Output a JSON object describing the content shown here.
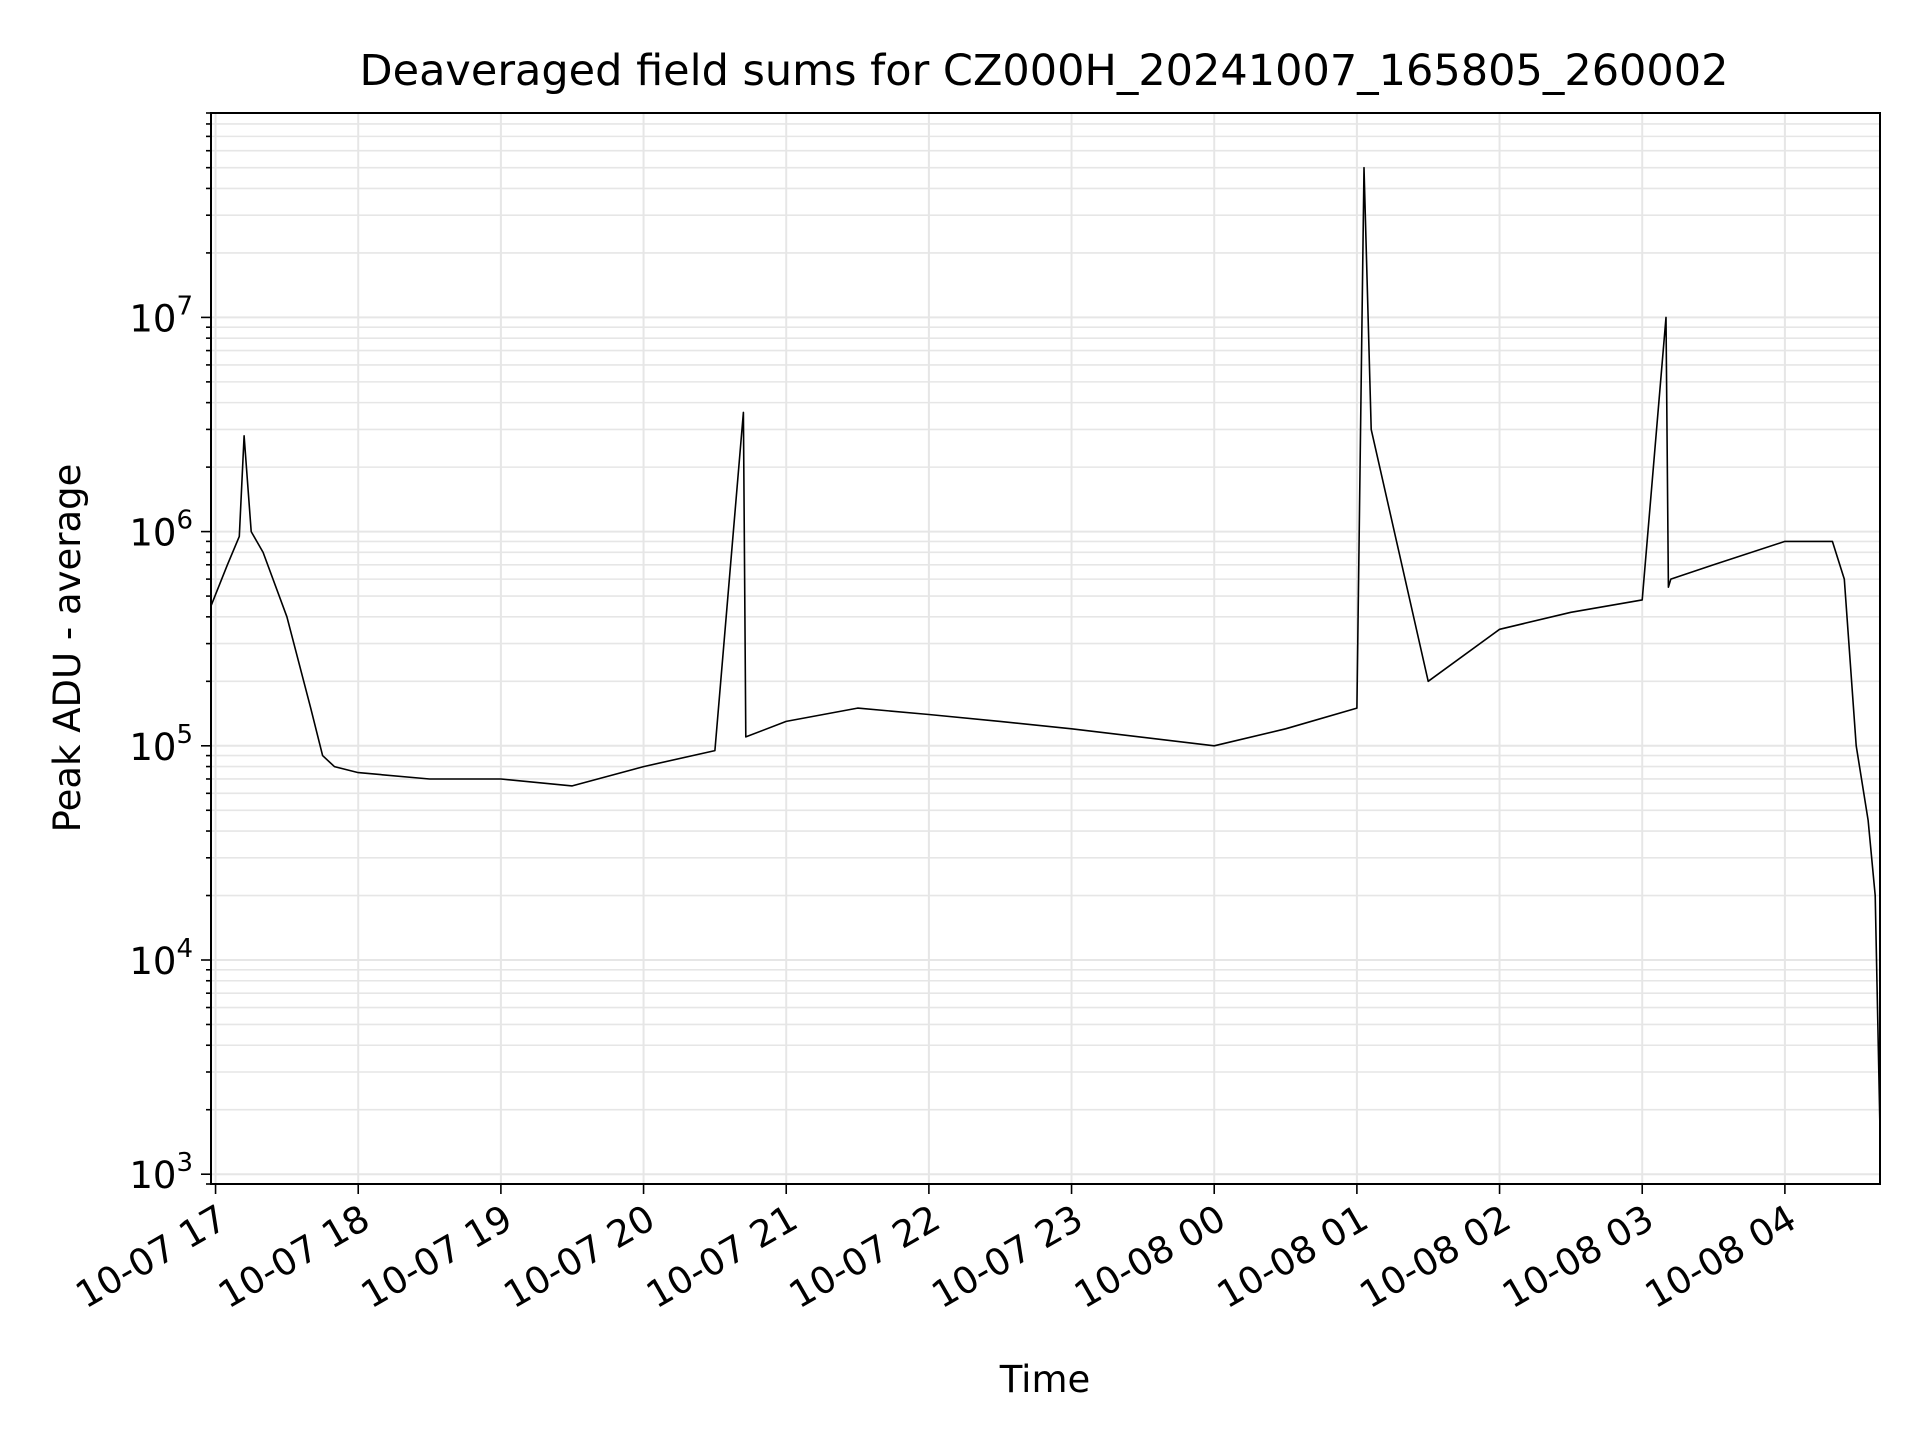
{
  "chart_data": {
    "type": "line",
    "title": "Deaveraged field sums for CZ000H_20241007_165805_260002",
    "xlabel": "Time",
    "ylabel": "Peak ADU - average",
    "yscale": "log",
    "ylim": [
      900,
      90000000
    ],
    "xlim": [
      "2024-10-07 16:58:05",
      "2024-10-08 04:40:00"
    ],
    "grid": true,
    "line_color": "#000000",
    "grid_color": "#e6e6e6",
    "x_ticks": [
      {
        "value": "2024-10-07 17:00",
        "label": "10-07 17"
      },
      {
        "value": "2024-10-07 18:00",
        "label": "10-07 18"
      },
      {
        "value": "2024-10-07 19:00",
        "label": "10-07 19"
      },
      {
        "value": "2024-10-07 20:00",
        "label": "10-07 20"
      },
      {
        "value": "2024-10-07 21:00",
        "label": "10-07 21"
      },
      {
        "value": "2024-10-07 22:00",
        "label": "10-07 22"
      },
      {
        "value": "2024-10-07 23:00",
        "label": "10-07 23"
      },
      {
        "value": "2024-10-08 00:00",
        "label": "10-08 00"
      },
      {
        "value": "2024-10-08 01:00",
        "label": "10-08 01"
      },
      {
        "value": "2024-10-08 02:00",
        "label": "10-08 02"
      },
      {
        "value": "2024-10-08 03:00",
        "label": "10-08 03"
      },
      {
        "value": "2024-10-08 04:00",
        "label": "10-08 04"
      }
    ],
    "y_ticks": [
      {
        "value": 1000,
        "base": "10",
        "exp": "3"
      },
      {
        "value": 10000,
        "base": "10",
        "exp": "4"
      },
      {
        "value": 100000,
        "base": "10",
        "exp": "5"
      },
      {
        "value": 1000000,
        "base": "10",
        "exp": "6"
      },
      {
        "value": 10000000,
        "base": "10",
        "exp": "7"
      }
    ],
    "series": [
      {
        "x": [
          "2024-10-07 16:58:05",
          "2024-10-07 17:05",
          "2024-10-07 17:10",
          "2024-10-07 17:12",
          "2024-10-07 17:15",
          "2024-10-07 17:20",
          "2024-10-07 17:30",
          "2024-10-07 17:40",
          "2024-10-07 17:45",
          "2024-10-07 17:50",
          "2024-10-07 18:00",
          "2024-10-07 18:30",
          "2024-10-07 19:00",
          "2024-10-07 19:30",
          "2024-10-07 20:00",
          "2024-10-07 20:30",
          "2024-10-07 20:42",
          "2024-10-07 20:43",
          "2024-10-07 21:00",
          "2024-10-07 21:30",
          "2024-10-07 22:00",
          "2024-10-07 22:30",
          "2024-10-07 23:00",
          "2024-10-08 00:00",
          "2024-10-08 00:30",
          "2024-10-08 01:00",
          "2024-10-08 01:03",
          "2024-10-08 01:06",
          "2024-10-08 01:30",
          "2024-10-08 02:00",
          "2024-10-08 02:30",
          "2024-10-08 03:00",
          "2024-10-08 03:10",
          "2024-10-08 03:11",
          "2024-10-08 03:12",
          "2024-10-08 03:30",
          "2024-10-08 04:00",
          "2024-10-08 04:20",
          "2024-10-08 04:25",
          "2024-10-08 04:30",
          "2024-10-08 04:35",
          "2024-10-08 04:38",
          "2024-10-08 04:40"
        ],
        "y": [
          450000,
          700000,
          950000,
          2800000,
          1000000,
          800000,
          400000,
          150000,
          90000,
          80000,
          75000,
          70000,
          70000,
          65000,
          80000,
          95000,
          3600000,
          110000,
          130000,
          150000,
          140000,
          130000,
          120000,
          100000,
          120000,
          150000,
          50000000,
          3000000,
          200000,
          350000,
          420000,
          480000,
          10000000,
          550000,
          600000,
          700000,
          900000,
          900000,
          600000,
          100000,
          45000,
          20000,
          1600
        ]
      }
    ]
  }
}
